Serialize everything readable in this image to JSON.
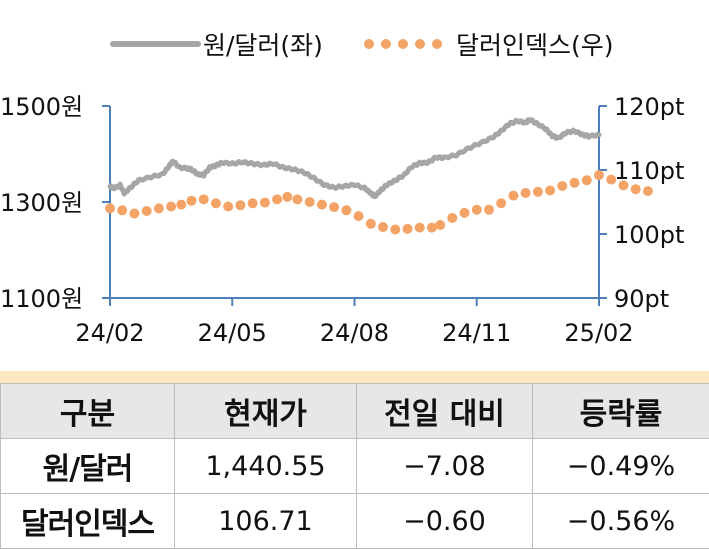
{
  "chart_data": {
    "type": "line",
    "x_ticks": [
      "24/02",
      "24/05",
      "24/08",
      "24/11",
      "25/02"
    ],
    "y_left": {
      "ticks": [
        "1100원",
        "1300원",
        "1500원"
      ],
      "range": [
        1100,
        1500
      ]
    },
    "y_right": {
      "ticks": [
        "90pt",
        "100pt",
        "110pt",
        "120pt"
      ],
      "range": [
        90,
        120
      ]
    },
    "legend_position": "top",
    "series": [
      {
        "name": "원/달러(좌)",
        "axis": "left",
        "style": "solid",
        "color": "#a6a6a6",
        "points": [
          [
            0,
            1332
          ],
          [
            0.1,
            1329
          ],
          [
            0.25,
            1335
          ],
          [
            0.35,
            1318
          ],
          [
            0.5,
            1330
          ],
          [
            0.7,
            1345
          ],
          [
            1.0,
            1352
          ],
          [
            1.3,
            1358
          ],
          [
            1.45,
            1375
          ],
          [
            1.55,
            1385
          ],
          [
            1.7,
            1372
          ],
          [
            1.9,
            1370
          ],
          [
            2.0,
            1368
          ],
          [
            2.15,
            1358
          ],
          [
            2.3,
            1356
          ],
          [
            2.45,
            1372
          ],
          [
            2.6,
            1376
          ],
          [
            2.75,
            1382
          ],
          [
            3.0,
            1380
          ],
          [
            3.25,
            1383
          ],
          [
            3.5,
            1380
          ],
          [
            3.75,
            1377
          ],
          [
            4.0,
            1380
          ],
          [
            4.25,
            1372
          ],
          [
            4.5,
            1368
          ],
          [
            4.75,
            1362
          ],
          [
            5.0,
            1350
          ],
          [
            5.25,
            1336
          ],
          [
            5.5,
            1330
          ],
          [
            5.75,
            1333
          ],
          [
            6.0,
            1336
          ],
          [
            6.25,
            1329
          ],
          [
            6.4,
            1318
          ],
          [
            6.5,
            1312
          ],
          [
            6.65,
            1325
          ],
          [
            6.8,
            1336
          ],
          [
            7.0,
            1345
          ],
          [
            7.2,
            1355
          ],
          [
            7.4,
            1373
          ],
          [
            7.6,
            1381
          ],
          [
            7.8,
            1382
          ],
          [
            8.0,
            1393
          ],
          [
            8.2,
            1392
          ],
          [
            8.5,
            1398
          ],
          [
            8.8,
            1412
          ],
          [
            9.1,
            1423
          ],
          [
            9.4,
            1435
          ],
          [
            9.6,
            1448
          ],
          [
            9.8,
            1463
          ],
          [
            10.0,
            1469
          ],
          [
            10.2,
            1465
          ],
          [
            10.3,
            1472
          ],
          [
            10.5,
            1462
          ],
          [
            10.7,
            1452
          ],
          [
            10.85,
            1438
          ],
          [
            11.0,
            1433
          ],
          [
            11.2,
            1445
          ],
          [
            11.4,
            1448
          ],
          [
            11.6,
            1440
          ],
          [
            11.75,
            1437
          ],
          [
            12.0,
            1440
          ]
        ]
      },
      {
        "name": "달러인덱스(우)",
        "axis": "right",
        "style": "dotted",
        "color": "#f4a366",
        "points": [
          [
            0,
            104.0
          ],
          [
            0.3,
            103.7
          ],
          [
            0.6,
            103.2
          ],
          [
            0.9,
            103.6
          ],
          [
            1.2,
            104.0
          ],
          [
            1.5,
            104.3
          ],
          [
            1.75,
            104.6
          ],
          [
            2.0,
            105.2
          ],
          [
            2.3,
            105.4
          ],
          [
            2.6,
            104.8
          ],
          [
            2.9,
            104.3
          ],
          [
            3.2,
            104.5
          ],
          [
            3.5,
            104.8
          ],
          [
            3.8,
            104.9
          ],
          [
            4.1,
            105.4
          ],
          [
            4.35,
            105.8
          ],
          [
            4.6,
            105.4
          ],
          [
            4.9,
            105.0
          ],
          [
            5.2,
            104.6
          ],
          [
            5.5,
            104.2
          ],
          [
            5.8,
            103.7
          ],
          [
            6.1,
            102.8
          ],
          [
            6.4,
            101.6
          ],
          [
            6.7,
            101.1
          ],
          [
            7.0,
            100.7
          ],
          [
            7.3,
            100.8
          ],
          [
            7.6,
            101.0
          ],
          [
            7.9,
            101.0
          ],
          [
            8.1,
            101.4
          ],
          [
            8.4,
            102.5
          ],
          [
            8.7,
            103.3
          ],
          [
            9.0,
            103.8
          ],
          [
            9.3,
            103.8
          ],
          [
            9.6,
            104.8
          ],
          [
            9.9,
            106.0
          ],
          [
            10.2,
            106.4
          ],
          [
            10.5,
            106.6
          ],
          [
            10.8,
            106.8
          ],
          [
            11.1,
            107.5
          ],
          [
            11.4,
            108.0
          ],
          [
            11.7,
            108.4
          ],
          [
            12.0,
            109.2
          ],
          [
            12.3,
            108.5
          ],
          [
            12.6,
            107.6
          ],
          [
            12.9,
            107.0
          ],
          [
            13.2,
            106.7
          ]
        ]
      }
    ]
  },
  "table": {
    "headers": [
      "구분",
      "현재가",
      "전일 대비",
      "등락률"
    ],
    "rows": [
      [
        "원/달러",
        "1,440.55",
        "−7.08",
        "−0.49%"
      ],
      [
        "달러인덱스",
        "106.71",
        "−0.60",
        "−0.56%"
      ]
    ]
  }
}
